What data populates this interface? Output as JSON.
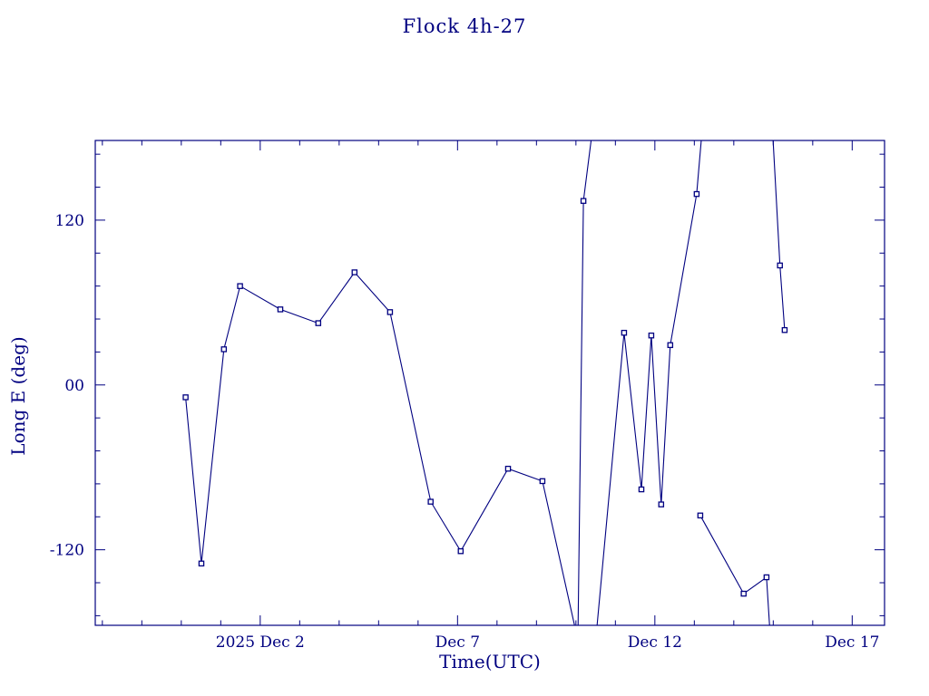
{
  "chart_data": {
    "type": "line",
    "title": "Flock 4h-27",
    "xlabel": "Time(UTC)",
    "ylabel": "Long E (deg)",
    "x_unit": "day of December 2025 (fractional; Nov 30 = 0, negative = late Nov)",
    "xlim": [
      -2.18,
      17.82
    ],
    "ylim": [
      -175,
      178
    ],
    "grid": false,
    "legend": null,
    "line_color": "#000080",
    "background": "#ffffff",
    "marker": "open-square",
    "x_minor_step": 1,
    "y_minor_step": 24,
    "xticks": [
      {
        "value": 2,
        "label": "2025 Dec 2"
      },
      {
        "value": 7,
        "label": "Dec 7"
      },
      {
        "value": 12,
        "label": "Dec 12"
      },
      {
        "value": 17,
        "label": "Dec 17"
      }
    ],
    "yticks": [
      {
        "value": -120,
        "label": "-120"
      },
      {
        "value": 0,
        "label": "00"
      },
      {
        "value": 120,
        "label": "120"
      }
    ],
    "segments": [
      {
        "name": "track-1",
        "points": [
          [
            0.11,
            -9
          ],
          [
            0.51,
            -130
          ],
          [
            1.08,
            26
          ],
          [
            1.49,
            72
          ],
          [
            2.51,
            55
          ],
          [
            3.47,
            45
          ],
          [
            4.39,
            82
          ],
          [
            5.29,
            53
          ],
          [
            6.32,
            -85
          ],
          [
            7.08,
            -121
          ],
          [
            8.28,
            -61
          ],
          [
            9.15,
            -70
          ],
          [
            10.05,
            -186
          ],
          [
            10.19,
            134
          ],
          [
            10.42,
            186
          ]
        ]
      },
      {
        "name": "track-2",
        "points": [
          [
            10.5,
            -186
          ],
          [
            11.22,
            38
          ],
          [
            11.66,
            -76
          ],
          [
            11.91,
            36
          ],
          [
            12.16,
            -87
          ],
          [
            12.39,
            29
          ],
          [
            13.06,
            139
          ],
          [
            13.2,
            186
          ]
        ]
      },
      {
        "name": "track-3",
        "points": [
          [
            13.15,
            -95
          ],
          [
            14.25,
            -152
          ],
          [
            14.83,
            -140
          ],
          [
            14.93,
            -186
          ]
        ]
      },
      {
        "name": "track-4",
        "points": [
          [
            14.98,
            186
          ],
          [
            15.17,
            87
          ],
          [
            15.29,
            40
          ]
        ]
      }
    ]
  }
}
